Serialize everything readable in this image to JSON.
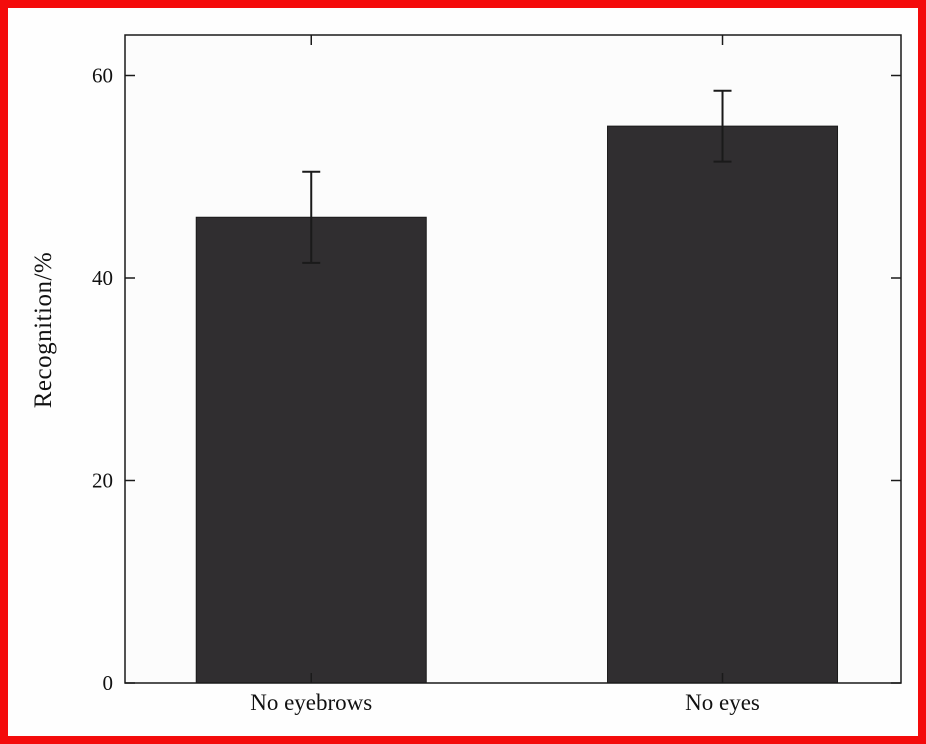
{
  "chart_data": {
    "type": "bar",
    "categories": [
      "No eyebrows",
      "No eyes"
    ],
    "values": [
      46,
      55
    ],
    "errors": [
      4.5,
      3.5
    ],
    "title": "",
    "xlabel": "",
    "ylabel": "Recognition/%",
    "ylim": [
      0,
      64
    ],
    "yticks": [
      0,
      20,
      40,
      60
    ],
    "grid": false,
    "legend": null,
    "bar_color": "#302e30",
    "axis_color": "#1a1a1a",
    "plot_background": "#fcfcfc"
  },
  "frame": {
    "border_color": "#f40b0b",
    "background": "#fefefe"
  }
}
